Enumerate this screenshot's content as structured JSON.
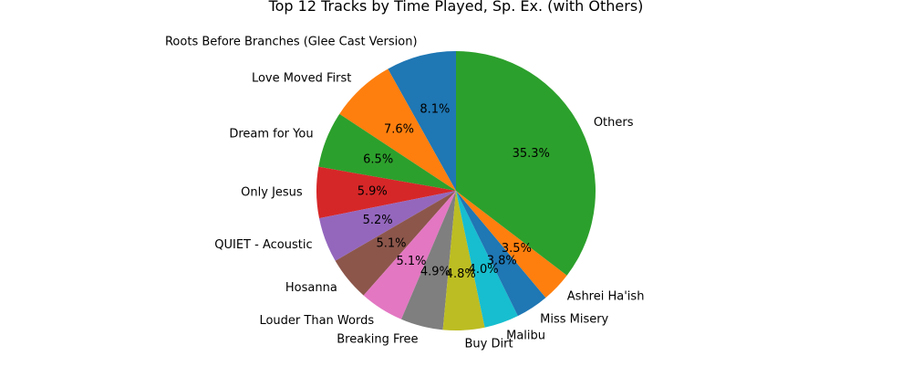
{
  "chart_data": {
    "type": "pie",
    "title": "Top 12 Tracks by Time Played, Sp. Ex. (with Others)",
    "slices": [
      {
        "label": "Roots Before Branches (Glee Cast Version)",
        "value": 8.1,
        "pct_text": "8.1%",
        "color": "#1f77b4"
      },
      {
        "label": "Love Moved First",
        "value": 7.6,
        "pct_text": "7.6%",
        "color": "#ff7f0e"
      },
      {
        "label": "Dream for You",
        "value": 6.5,
        "pct_text": "6.5%",
        "color": "#2ca02c"
      },
      {
        "label": "Only Jesus",
        "value": 5.9,
        "pct_text": "5.9%",
        "color": "#d62728"
      },
      {
        "label": "QUIET - Acoustic",
        "value": 5.2,
        "pct_text": "5.2%",
        "color": "#9467bd"
      },
      {
        "label": "Hosanna",
        "value": 5.1,
        "pct_text": "5.1%",
        "color": "#8c564b"
      },
      {
        "label": "Louder Than Words",
        "value": 5.1,
        "pct_text": "5.1%",
        "color": "#e377c2"
      },
      {
        "label": "Breaking Free",
        "value": 4.9,
        "pct_text": "4.9%",
        "color": "#7f7f7f"
      },
      {
        "label": "Buy Dirt",
        "value": 4.8,
        "pct_text": "4.8%",
        "color": "#bcbd22"
      },
      {
        "label": "Malibu",
        "value": 4.0,
        "pct_text": "4.0%",
        "color": "#17becf"
      },
      {
        "label": "Miss Misery",
        "value": 3.8,
        "pct_text": "3.8%",
        "color": "#1f77b4"
      },
      {
        "label": "Ashrei Ha'ish",
        "value": 3.5,
        "pct_text": "3.5%",
        "color": "#ff7f0e"
      },
      {
        "label": "Others",
        "value": 35.3,
        "pct_text": "35.3%",
        "color": "#2ca02c"
      }
    ],
    "start_angle_deg": 90,
    "direction": "counterclockwise",
    "legend": "none"
  }
}
